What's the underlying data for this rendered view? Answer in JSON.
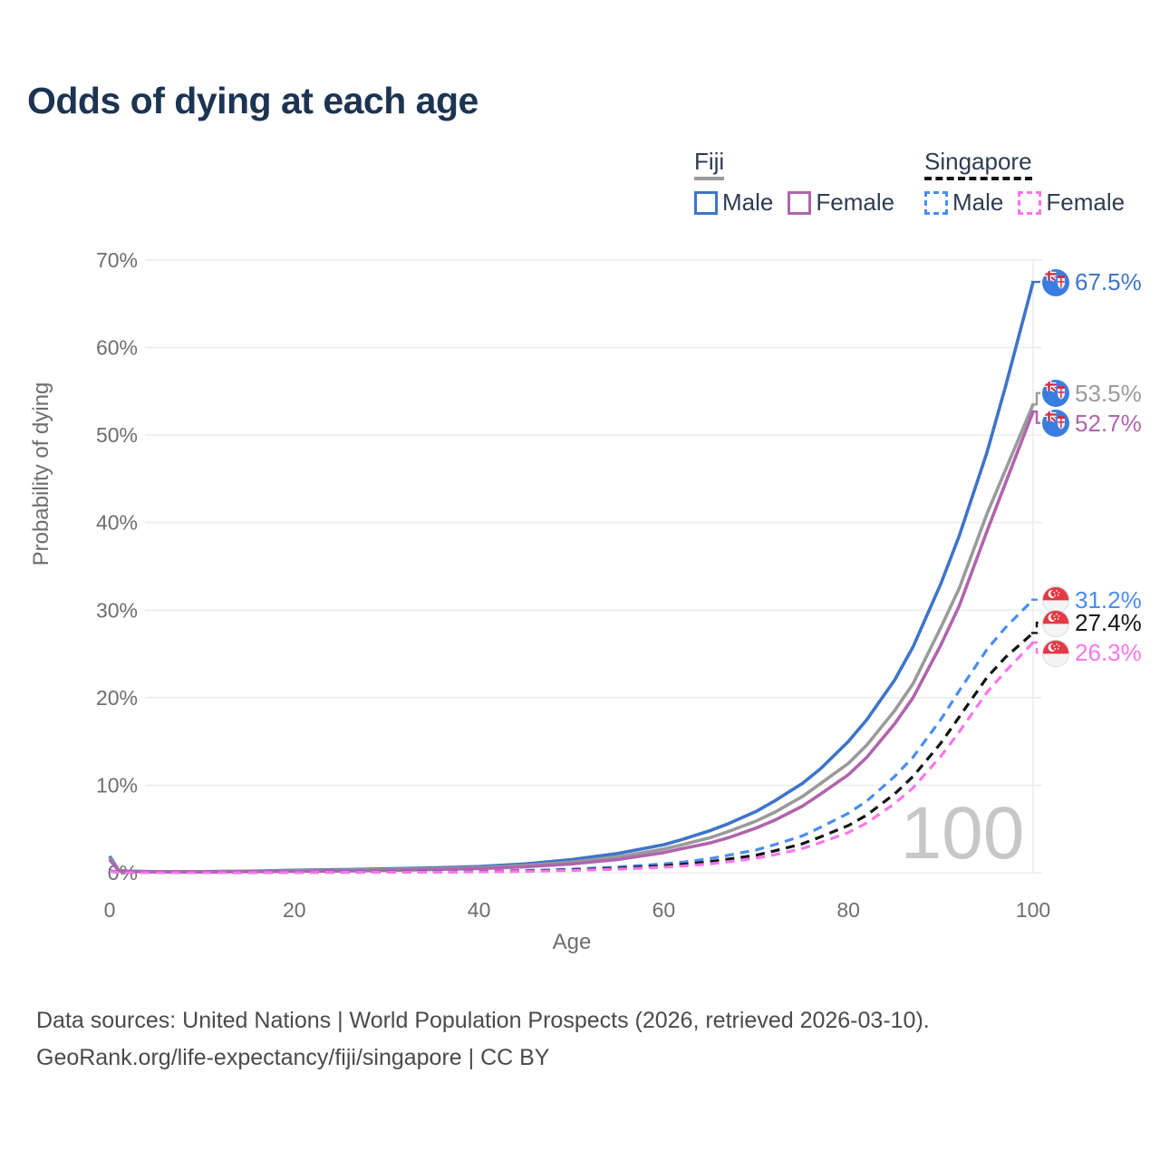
{
  "title": "Odds of dying at each age",
  "legend": {
    "groups": [
      {
        "label": "Fiji",
        "underline_color": "#9A9A9A",
        "underline_style": "solid",
        "items": [
          {
            "label": "Male",
            "color": "#3E74C9",
            "style": "solid"
          },
          {
            "label": "Female",
            "color": "#B064AE",
            "style": "solid"
          }
        ]
      },
      {
        "label": "Singapore",
        "underline_color": "#141414",
        "underline_style": "dashed",
        "items": [
          {
            "label": "Male",
            "color": "#4A8CF2",
            "style": "dashed"
          },
          {
            "label": "Female",
            "color": "#FC74EC",
            "style": "dashed"
          }
        ]
      }
    ]
  },
  "chart_data": {
    "type": "line",
    "title": "Odds of dying at each age",
    "xlabel": "Age",
    "ylabel": "Probability of dying",
    "xlim": [
      0,
      100
    ],
    "ylim": [
      0,
      70
    ],
    "xticks": [
      0,
      20,
      40,
      60,
      80,
      100
    ],
    "yticks": [
      0,
      10,
      20,
      30,
      40,
      50,
      60,
      70
    ],
    "y_tick_suffix": "%",
    "grid": "horizontal",
    "legend_position": "top-right",
    "watermark": "100",
    "series": [
      {
        "id": "fiji-male",
        "name": "Fiji Male",
        "country": "Fiji",
        "flag": "fj",
        "color": "#3E74C9",
        "dash": "solid",
        "end_label": "67.5%",
        "points": [
          [
            0,
            1.9
          ],
          [
            1,
            0.25
          ],
          [
            2,
            0.18
          ],
          [
            5,
            0.12
          ],
          [
            10,
            0.12
          ],
          [
            15,
            0.18
          ],
          [
            20,
            0.28
          ],
          [
            25,
            0.35
          ],
          [
            30,
            0.45
          ],
          [
            35,
            0.55
          ],
          [
            40,
            0.7
          ],
          [
            45,
            1.0
          ],
          [
            50,
            1.5
          ],
          [
            55,
            2.2
          ],
          [
            60,
            3.2
          ],
          [
            62,
            3.8
          ],
          [
            65,
            4.8
          ],
          [
            67,
            5.6
          ],
          [
            70,
            7.0
          ],
          [
            72,
            8.2
          ],
          [
            75,
            10.2
          ],
          [
            77,
            11.9
          ],
          [
            80,
            15.0
          ],
          [
            82,
            17.5
          ],
          [
            85,
            22.0
          ],
          [
            87,
            25.8
          ],
          [
            90,
            33.0
          ],
          [
            92,
            38.5
          ],
          [
            95,
            48.0
          ],
          [
            97,
            55.5
          ],
          [
            100,
            67.5
          ]
        ]
      },
      {
        "id": "fiji-both",
        "name": "Fiji Both sexes",
        "country": "Fiji",
        "flag": "fj",
        "color": "#9A9A9A",
        "dash": "solid",
        "end_label": "53.5%",
        "points": [
          [
            0,
            1.7
          ],
          [
            1,
            0.22
          ],
          [
            2,
            0.16
          ],
          [
            5,
            0.1
          ],
          [
            10,
            0.1
          ],
          [
            15,
            0.15
          ],
          [
            20,
            0.22
          ],
          [
            25,
            0.28
          ],
          [
            30,
            0.36
          ],
          [
            35,
            0.45
          ],
          [
            40,
            0.58
          ],
          [
            45,
            0.82
          ],
          [
            50,
            1.2
          ],
          [
            55,
            1.8
          ],
          [
            60,
            2.7
          ],
          [
            62,
            3.2
          ],
          [
            65,
            4.0
          ],
          [
            67,
            4.7
          ],
          [
            70,
            5.9
          ],
          [
            72,
            6.9
          ],
          [
            75,
            8.7
          ],
          [
            77,
            10.2
          ],
          [
            80,
            12.5
          ],
          [
            82,
            14.6
          ],
          [
            85,
            18.5
          ],
          [
            87,
            21.6
          ],
          [
            90,
            28.0
          ],
          [
            92,
            32.5
          ],
          [
            95,
            41.0
          ],
          [
            97,
            46.0
          ],
          [
            100,
            53.5
          ]
        ]
      },
      {
        "id": "fiji-female",
        "name": "Fiji Female",
        "country": "Fiji",
        "flag": "fj",
        "color": "#B064AE",
        "dash": "solid",
        "end_label": "52.7%",
        "points": [
          [
            0,
            1.5
          ],
          [
            1,
            0.2
          ],
          [
            2,
            0.14
          ],
          [
            5,
            0.09
          ],
          [
            10,
            0.08
          ],
          [
            15,
            0.12
          ],
          [
            20,
            0.16
          ],
          [
            25,
            0.2
          ],
          [
            30,
            0.27
          ],
          [
            35,
            0.36
          ],
          [
            40,
            0.48
          ],
          [
            45,
            0.68
          ],
          [
            50,
            1.0
          ],
          [
            55,
            1.5
          ],
          [
            60,
            2.3
          ],
          [
            62,
            2.75
          ],
          [
            65,
            3.4
          ],
          [
            67,
            4.0
          ],
          [
            70,
            5.1
          ],
          [
            72,
            6.0
          ],
          [
            75,
            7.6
          ],
          [
            77,
            9.0
          ],
          [
            80,
            11.2
          ],
          [
            82,
            13.2
          ],
          [
            85,
            17.0
          ],
          [
            87,
            20.0
          ],
          [
            90,
            26.0
          ],
          [
            92,
            30.5
          ],
          [
            95,
            39.0
          ],
          [
            97,
            44.5
          ],
          [
            100,
            52.7
          ]
        ]
      },
      {
        "id": "singapore-male",
        "name": "Singapore Male",
        "country": "Singapore",
        "flag": "sg",
        "color": "#4A8CF2",
        "dash": "dashed",
        "end_label": "31.2%",
        "points": [
          [
            0,
            0.25
          ],
          [
            1,
            0.04
          ],
          [
            2,
            0.03
          ],
          [
            5,
            0.02
          ],
          [
            10,
            0.02
          ],
          [
            15,
            0.03
          ],
          [
            20,
            0.05
          ],
          [
            25,
            0.06
          ],
          [
            30,
            0.07
          ],
          [
            35,
            0.1
          ],
          [
            40,
            0.15
          ],
          [
            45,
            0.25
          ],
          [
            50,
            0.4
          ],
          [
            55,
            0.65
          ],
          [
            60,
            1.0
          ],
          [
            62,
            1.2
          ],
          [
            65,
            1.6
          ],
          [
            67,
            2.0
          ],
          [
            70,
            2.6
          ],
          [
            72,
            3.2
          ],
          [
            75,
            4.2
          ],
          [
            77,
            5.2
          ],
          [
            80,
            6.8
          ],
          [
            82,
            8.2
          ],
          [
            85,
            11.0
          ],
          [
            87,
            13.2
          ],
          [
            90,
            17.5
          ],
          [
            92,
            20.8
          ],
          [
            95,
            25.5
          ],
          [
            97,
            28.0
          ],
          [
            100,
            31.2
          ]
        ]
      },
      {
        "id": "singapore-both",
        "name": "Singapore Both sexes",
        "country": "Singapore",
        "flag": "sg",
        "color": "#141414",
        "dash": "dashed",
        "end_label": "27.4%",
        "points": [
          [
            0,
            0.2
          ],
          [
            1,
            0.03
          ],
          [
            2,
            0.025
          ],
          [
            5,
            0.015
          ],
          [
            10,
            0.015
          ],
          [
            15,
            0.025
          ],
          [
            20,
            0.04
          ],
          [
            25,
            0.05
          ],
          [
            30,
            0.06
          ],
          [
            35,
            0.08
          ],
          [
            40,
            0.12
          ],
          [
            45,
            0.2
          ],
          [
            50,
            0.32
          ],
          [
            55,
            0.5
          ],
          [
            60,
            0.78
          ],
          [
            62,
            0.95
          ],
          [
            65,
            1.25
          ],
          [
            67,
            1.55
          ],
          [
            70,
            2.0
          ],
          [
            72,
            2.5
          ],
          [
            75,
            3.3
          ],
          [
            77,
            4.1
          ],
          [
            80,
            5.4
          ],
          [
            82,
            6.6
          ],
          [
            85,
            9.0
          ],
          [
            87,
            11.0
          ],
          [
            90,
            14.8
          ],
          [
            92,
            17.8
          ],
          [
            95,
            22.3
          ],
          [
            97,
            24.6
          ],
          [
            100,
            27.4
          ]
        ]
      },
      {
        "id": "singapore-female",
        "name": "Singapore Female",
        "country": "Singapore",
        "flag": "sg",
        "color": "#FC74EC",
        "dash": "dashed",
        "end_label": "26.3%",
        "points": [
          [
            0,
            0.18
          ],
          [
            1,
            0.025
          ],
          [
            2,
            0.02
          ],
          [
            5,
            0.012
          ],
          [
            10,
            0.012
          ],
          [
            15,
            0.02
          ],
          [
            20,
            0.03
          ],
          [
            25,
            0.04
          ],
          [
            30,
            0.05
          ],
          [
            35,
            0.065
          ],
          [
            40,
            0.1
          ],
          [
            45,
            0.16
          ],
          [
            50,
            0.26
          ],
          [
            55,
            0.4
          ],
          [
            60,
            0.62
          ],
          [
            62,
            0.76
          ],
          [
            65,
            1.0
          ],
          [
            67,
            1.25
          ],
          [
            70,
            1.65
          ],
          [
            72,
            2.05
          ],
          [
            75,
            2.75
          ],
          [
            77,
            3.45
          ],
          [
            80,
            4.6
          ],
          [
            82,
            5.7
          ],
          [
            85,
            7.9
          ],
          [
            87,
            9.7
          ],
          [
            90,
            13.3
          ],
          [
            92,
            16.1
          ],
          [
            95,
            20.6
          ],
          [
            97,
            23.0
          ],
          [
            100,
            26.3
          ]
        ]
      }
    ]
  },
  "footer": {
    "line1": "Data sources: United Nations | World Population Prospects (2026, retrieved 2026-03-10).",
    "line2": "GeoRank.org/life-expectancy/fiji/singapore | CC BY"
  }
}
